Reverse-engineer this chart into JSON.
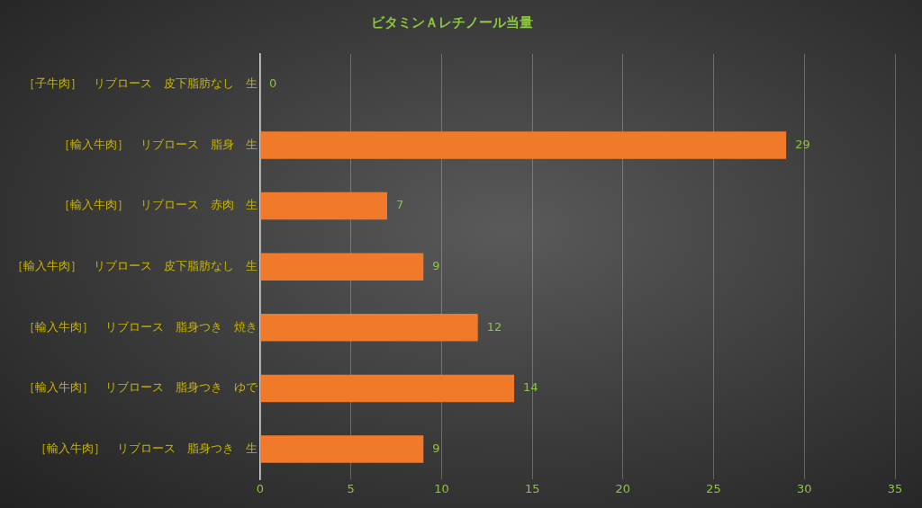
{
  "chart_data": {
    "type": "bar",
    "orientation": "horizontal",
    "title": "ビタミンＡレチノール当量",
    "categories": [
      "［子牛肉］　リブロース　皮下脂肪なし　生",
      "［輸入牛肉］　リブロース　脂身　生",
      "［輸入牛肉］　リブロース　赤肉　生",
      "［輸入牛肉］　リブロース　皮下脂肪なし　生",
      "［輸入牛肉］　リブロース　脂身つき　焼き",
      "［輸入牛肉］　リブロース　脂身つき　ゆで",
      "［輸入牛肉］　リブロース　脂身つき　生"
    ],
    "values": [
      0,
      29,
      7,
      9,
      12,
      14,
      9
    ],
    "color": "#f07a2a",
    "xlim": [
      0,
      35
    ],
    "xticks": [
      0,
      5,
      10,
      15,
      20,
      25,
      30,
      35
    ],
    "grid": "x",
    "data_labels": true,
    "legend": false
  }
}
